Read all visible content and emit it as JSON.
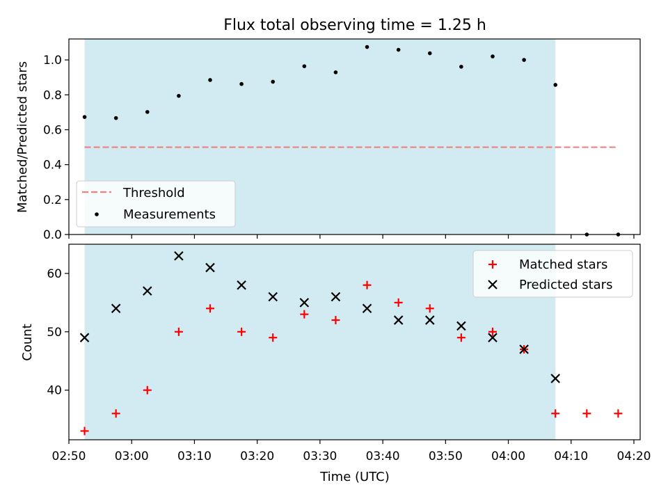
{
  "title": "Flux total observing time = 1.25 h",
  "colors": {
    "shade": "#add8e6",
    "threshold": "#f08080",
    "measurement": "#000000",
    "matched": "#ff0000",
    "predicted": "#000000"
  },
  "chart_data": [
    {
      "type": "scatter",
      "panel": "top",
      "title": "Flux total observing time = 1.25 h",
      "xlabel": "",
      "ylabel": "Matched/Predicted stars",
      "ylim": [
        0,
        1.12
      ],
      "yticks": [
        "0.0",
        "0.2",
        "0.4",
        "0.6",
        "0.8",
        "1.0"
      ],
      "shaded_region": [
        "02:52:30",
        "04:07:30"
      ],
      "legend_position": "lower-left",
      "threshold": {
        "name": "Threshold",
        "value": 0.5,
        "x_range": [
          "02:52:30",
          "04:17:30"
        ]
      },
      "series": [
        {
          "name": "Measurements",
          "x": [
            "02:52:30",
            "02:57:30",
            "03:02:30",
            "03:07:30",
            "03:12:30",
            "03:17:30",
            "03:22:30",
            "03:27:30",
            "03:32:30",
            "03:37:30",
            "03:42:30",
            "03:47:30",
            "03:52:30",
            "03:57:30",
            "04:02:30",
            "04:07:30",
            "04:12:30",
            "04:17:30"
          ],
          "values": [
            0.673,
            0.667,
            0.702,
            0.794,
            0.885,
            0.862,
            0.875,
            0.964,
            0.929,
            1.074,
            1.058,
            1.038,
            0.961,
            1.02,
            1.0,
            0.857,
            0.0,
            0.0
          ]
        }
      ]
    },
    {
      "type": "scatter",
      "panel": "bottom",
      "xlabel": "Time (UTC)",
      "ylabel": "Count",
      "ylim": [
        31.5,
        65
      ],
      "yticks": [
        "40",
        "50",
        "60"
      ],
      "xlim": [
        "02:50",
        "04:21"
      ],
      "xticks": [
        "02:50",
        "03:00",
        "03:10",
        "03:20",
        "03:30",
        "03:40",
        "03:50",
        "04:00",
        "04:10",
        "04:20"
      ],
      "shaded_region": [
        "02:52:30",
        "04:07:30"
      ],
      "legend_position": "upper-right",
      "series": [
        {
          "name": "Matched stars",
          "x": [
            "02:52:30",
            "02:57:30",
            "03:02:30",
            "03:07:30",
            "03:12:30",
            "03:17:30",
            "03:22:30",
            "03:27:30",
            "03:32:30",
            "03:37:30",
            "03:42:30",
            "03:47:30",
            "03:52:30",
            "03:57:30",
            "04:02:30",
            "04:07:30",
            "04:12:30",
            "04:17:30"
          ],
          "values": [
            33,
            36,
            40,
            50,
            54,
            50,
            49,
            53,
            52,
            58,
            55,
            54,
            49,
            50,
            47,
            36,
            36,
            36
          ]
        },
        {
          "name": "Predicted stars",
          "x": [
            "02:52:30",
            "02:57:30",
            "03:02:30",
            "03:07:30",
            "03:12:30",
            "03:17:30",
            "03:22:30",
            "03:27:30",
            "03:32:30",
            "03:37:30",
            "03:42:30",
            "03:47:30",
            "03:52:30",
            "03:57:30",
            "04:02:30",
            "04:07:30"
          ],
          "values": [
            49,
            54,
            57,
            63,
            61,
            58,
            56,
            55,
            56,
            54,
            52,
            52,
            51,
            49,
            47,
            42
          ]
        }
      ]
    }
  ]
}
